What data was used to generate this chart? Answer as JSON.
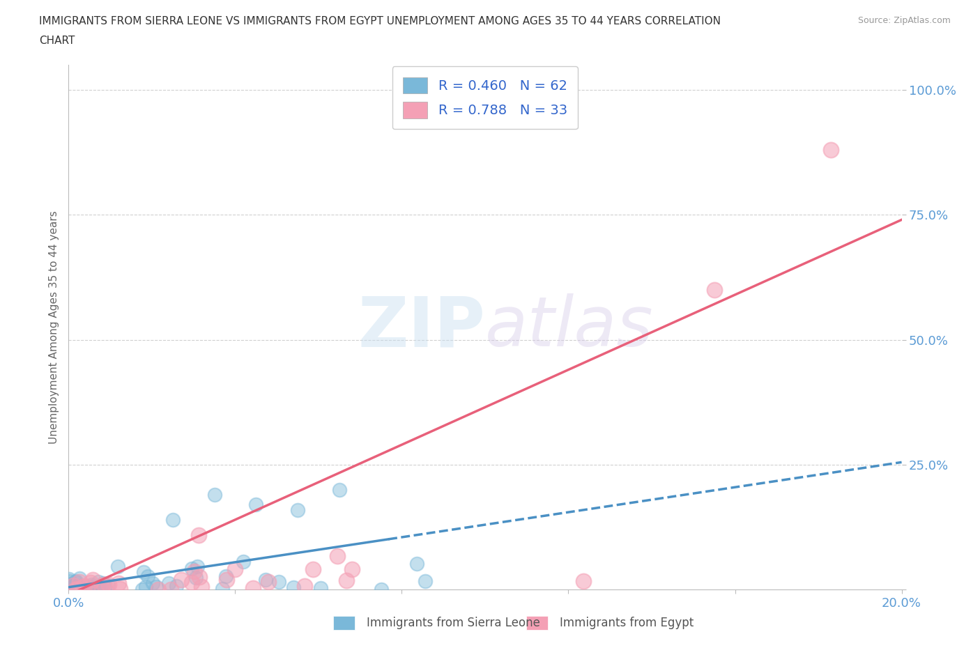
{
  "title_line1": "IMMIGRANTS FROM SIERRA LEONE VS IMMIGRANTS FROM EGYPT UNEMPLOYMENT AMONG AGES 35 TO 44 YEARS CORRELATION",
  "title_line2": "CHART",
  "source": "Source: ZipAtlas.com",
  "ylabel": "Unemployment Among Ages 35 to 44 years",
  "xlim": [
    0.0,
    0.2
  ],
  "ylim": [
    0.0,
    1.05
  ],
  "yticks": [
    0.0,
    0.25,
    0.5,
    0.75,
    1.0
  ],
  "xticks": [
    0.0,
    0.04,
    0.08,
    0.12,
    0.16,
    0.2
  ],
  "ytick_labels": [
    "",
    "25.0%",
    "50.0%",
    "75.0%",
    "100.0%"
  ],
  "sierra_leone_color": "#7ab8d9",
  "egypt_color": "#f4a0b5",
  "sierra_leone_line_color": "#4a90c4",
  "egypt_line_color": "#e8607a",
  "R_sierra": 0.46,
  "N_sierra": 62,
  "R_egypt": 0.788,
  "N_egypt": 33,
  "watermark_zip": "ZIP",
  "watermark_atlas": "atlas",
  "background_color": "#ffffff",
  "grid_color": "#d0d0d0",
  "title_color": "#333333",
  "tick_label_color": "#5b9bd5",
  "legend_label_sierra": "Immigrants from Sierra Leone",
  "legend_label_egypt": "Immigrants from Egypt",
  "sierra_slope": 1.25,
  "sierra_intercept": 0.005,
  "egypt_slope": 3.75,
  "egypt_intercept": -0.01
}
